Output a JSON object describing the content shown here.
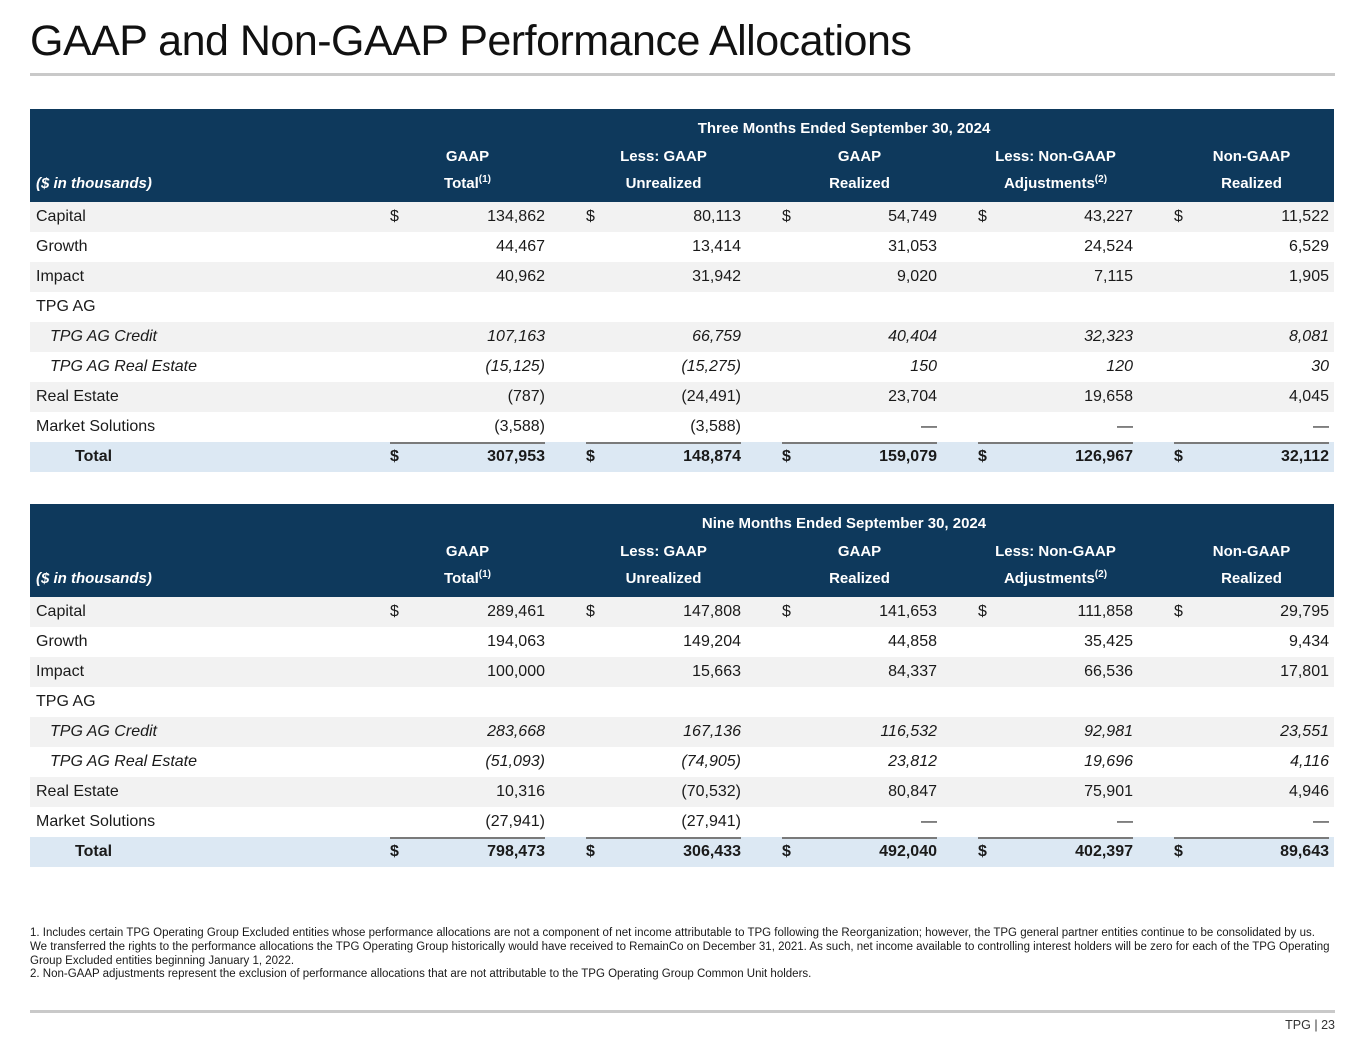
{
  "page": {
    "title": "GAAP and Non-GAAP Performance Allocations"
  },
  "colors": {
    "header_bg": "#0e395c",
    "header_text": "#ffffff",
    "stripe_bg": "#f2f2f2",
    "total_bg": "#dce8f3",
    "rule_gray": "#c9c9c9",
    "overline_gray": "#7a7a7a"
  },
  "tables": [
    {
      "period": "Three Months Ended September 30, 2024",
      "unit_label": "($ in thousands)",
      "columns": [
        {
          "top": "GAAP",
          "bottom": "Total",
          "sup": "(1)"
        },
        {
          "top": "Less: GAAP",
          "bottom": "Unrealized",
          "sup": ""
        },
        {
          "top": "GAAP",
          "bottom": "Realized",
          "sup": ""
        },
        {
          "top": "Less: Non-GAAP",
          "bottom": "Adjustments",
          "sup": "(2)"
        },
        {
          "top": "Non-GAAP",
          "bottom": "Realized",
          "sup": ""
        }
      ],
      "rows": [
        {
          "label": "Capital",
          "type": "data",
          "dollar": true,
          "values": [
            "134,862",
            "80,113",
            "54,749",
            "43,227",
            "11,522"
          ]
        },
        {
          "label": "Growth",
          "type": "data",
          "dollar": false,
          "values": [
            "44,467",
            "13,414",
            "31,053",
            "24,524",
            "6,529"
          ]
        },
        {
          "label": "Impact",
          "type": "data",
          "dollar": false,
          "values": [
            "40,962",
            "31,942",
            "9,020",
            "7,115",
            "1,905"
          ]
        },
        {
          "label": "TPG AG",
          "type": "group",
          "dollar": false,
          "values": [
            "",
            "",
            "",
            "",
            ""
          ]
        },
        {
          "label": "TPG AG Credit",
          "type": "sub",
          "dollar": false,
          "values": [
            "107,163",
            "66,759",
            "40,404",
            "32,323",
            "8,081"
          ]
        },
        {
          "label": "TPG AG Real Estate",
          "type": "sub",
          "dollar": false,
          "values": [
            "(15,125)",
            "(15,275)",
            "150",
            "120",
            "30"
          ]
        },
        {
          "label": "Real Estate",
          "type": "data",
          "dollar": false,
          "values": [
            "(787)",
            "(24,491)",
            "23,704",
            "19,658",
            "4,045"
          ]
        },
        {
          "label": "Market Solutions",
          "type": "data",
          "dollar": false,
          "values": [
            "(3,588)",
            "(3,588)",
            "—",
            "—",
            "—"
          ]
        },
        {
          "label": "Total",
          "type": "total",
          "dollar": true,
          "values": [
            "307,953",
            "148,874",
            "159,079",
            "126,967",
            "32,112"
          ]
        }
      ]
    },
    {
      "period": "Nine Months Ended September 30, 2024",
      "unit_label": "($ in thousands)",
      "columns": [
        {
          "top": "GAAP",
          "bottom": "Total",
          "sup": "(1)"
        },
        {
          "top": "Less: GAAP",
          "bottom": "Unrealized",
          "sup": ""
        },
        {
          "top": "GAAP",
          "bottom": "Realized",
          "sup": ""
        },
        {
          "top": "Less: Non-GAAP",
          "bottom": "Adjustments",
          "sup": "(2)"
        },
        {
          "top": "Non-GAAP",
          "bottom": "Realized",
          "sup": ""
        }
      ],
      "rows": [
        {
          "label": "Capital",
          "type": "data",
          "dollar": true,
          "values": [
            "289,461",
            "147,808",
            "141,653",
            "111,858",
            "29,795"
          ]
        },
        {
          "label": "Growth",
          "type": "data",
          "dollar": false,
          "values": [
            "194,063",
            "149,204",
            "44,858",
            "35,425",
            "9,434"
          ]
        },
        {
          "label": "Impact",
          "type": "data",
          "dollar": false,
          "values": [
            "100,000",
            "15,663",
            "84,337",
            "66,536",
            "17,801"
          ]
        },
        {
          "label": "TPG AG",
          "type": "group",
          "dollar": false,
          "values": [
            "",
            "",
            "",
            "",
            ""
          ]
        },
        {
          "label": "TPG AG Credit",
          "type": "sub",
          "dollar": false,
          "values": [
            "283,668",
            "167,136",
            "116,532",
            "92,981",
            "23,551"
          ]
        },
        {
          "label": "TPG AG Real Estate",
          "type": "sub",
          "dollar": false,
          "values": [
            "(51,093)",
            "(74,905)",
            "23,812",
            "19,696",
            "4,116"
          ]
        },
        {
          "label": "Real Estate",
          "type": "data",
          "dollar": false,
          "values": [
            "10,316",
            "(70,532)",
            "80,847",
            "75,901",
            "4,946"
          ]
        },
        {
          "label": "Market Solutions",
          "type": "data",
          "dollar": false,
          "values": [
            "(27,941)",
            "(27,941)",
            "—",
            "—",
            "—"
          ]
        },
        {
          "label": "Total",
          "type": "total",
          "dollar": true,
          "values": [
            "798,473",
            "306,433",
            "492,040",
            "402,397",
            "89,643"
          ]
        }
      ]
    }
  ],
  "footnotes": [
    "1. Includes certain TPG Operating Group Excluded entities whose performance allocations are not a component of net income attributable to TPG following the Reorganization; however, the TPG general partner entities continue to be consolidated by us. We transferred the rights to the performance allocations the TPG Operating Group historically would have received to RemainCo on December 31, 2021. As such, net income available to controlling interest holders will be zero for each of the TPG Operating Group Excluded entities beginning January 1, 2022.",
    "2. Non-GAAP adjustments represent the exclusion of performance allocations that are not attributable to the TPG Operating Group Common Unit holders."
  ],
  "footer": {
    "brand": "TPG",
    "separator": "|",
    "page_number": "23"
  }
}
